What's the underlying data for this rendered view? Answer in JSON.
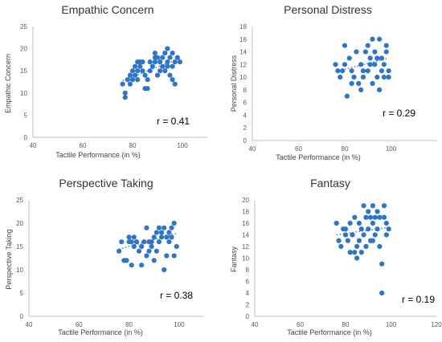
{
  "chart_data": [
    {
      "type": "scatter",
      "title": "Empathic Concern",
      "xlabel": "Tactile Performance (in %)",
      "ylabel": "Empathic Concern",
      "xlim": [
        40,
        110
      ],
      "ylim": [
        0,
        25
      ],
      "xticks": [
        40,
        60,
        80,
        100
      ],
      "yticks": [
        0,
        5,
        10,
        15,
        20,
        25
      ],
      "annotation": "r = 0.41",
      "trendline": {
        "x": [
          76,
          99
        ],
        "y": [
          12.8,
          17.8
        ]
      },
      "points": [
        [
          76,
          12
        ],
        [
          77,
          10
        ],
        [
          77,
          9
        ],
        [
          78,
          13
        ],
        [
          79,
          14
        ],
        [
          79,
          12
        ],
        [
          80,
          15
        ],
        [
          80,
          13
        ],
        [
          81,
          16
        ],
        [
          81,
          14
        ],
        [
          82,
          15
        ],
        [
          82,
          17
        ],
        [
          82,
          13
        ],
        [
          83,
          16
        ],
        [
          83,
          17
        ],
        [
          84,
          15
        ],
        [
          84,
          17
        ],
        [
          85,
          14
        ],
        [
          85,
          11
        ],
        [
          86,
          11
        ],
        [
          86,
          13
        ],
        [
          87,
          17
        ],
        [
          87,
          15
        ],
        [
          88,
          16
        ],
        [
          89,
          17
        ],
        [
          89,
          18
        ],
        [
          89,
          19
        ],
        [
          90,
          18
        ],
        [
          90,
          14
        ],
        [
          91,
          17
        ],
        [
          92,
          18
        ],
        [
          92,
          16
        ],
        [
          93,
          19
        ],
        [
          93,
          15
        ],
        [
          94,
          17
        ],
        [
          94,
          20
        ],
        [
          95,
          18
        ],
        [
          95,
          14
        ],
        [
          96,
          19
        ],
        [
          96,
          16
        ],
        [
          96,
          13
        ],
        [
          97,
          17
        ],
        [
          97,
          12
        ],
        [
          98,
          18
        ],
        [
          99,
          17
        ],
        [
          94,
          16
        ],
        [
          91,
          15
        ]
      ]
    },
    {
      "type": "scatter",
      "title": "Personal Distress",
      "xlabel": "Tactile Performance (in %)",
      "ylabel": "Personal Distress",
      "xlim": [
        40,
        120
      ],
      "ylim": [
        0,
        18
      ],
      "xticks": [
        40,
        60,
        80,
        100
      ],
      "yticks": [
        0,
        2,
        4,
        6,
        8,
        10,
        12,
        14,
        16,
        18
      ],
      "annotation": "r = 0.29",
      "trendline": {
        "x": [
          76,
          99
        ],
        "y": [
          10.9,
          13.0
        ]
      },
      "points": [
        [
          76,
          12
        ],
        [
          77,
          11
        ],
        [
          78,
          10
        ],
        [
          79,
          11
        ],
        [
          80,
          15
        ],
        [
          80,
          12
        ],
        [
          81,
          7
        ],
        [
          82,
          13
        ],
        [
          83,
          11
        ],
        [
          83,
          9
        ],
        [
          84,
          10
        ],
        [
          85,
          14
        ],
        [
          86,
          9
        ],
        [
          87,
          8
        ],
        [
          87,
          12
        ],
        [
          88,
          10
        ],
        [
          89,
          14
        ],
        [
          90,
          11
        ],
        [
          90,
          15
        ],
        [
          91,
          12
        ],
        [
          91,
          13
        ],
        [
          92,
          16
        ],
        [
          92,
          9
        ],
        [
          93,
          14
        ],
        [
          93,
          12
        ],
        [
          94,
          10
        ],
        [
          95,
          8
        ],
        [
          95,
          16
        ],
        [
          96,
          11
        ],
        [
          96,
          13
        ],
        [
          97,
          12
        ],
        [
          97,
          10
        ],
        [
          98,
          15
        ],
        [
          98,
          14
        ],
        [
          99,
          11
        ],
        [
          99,
          10
        ],
        [
          94,
          13
        ],
        [
          88,
          11
        ]
      ]
    },
    {
      "type": "scatter",
      "title": "Perspective Taking",
      "xlabel": "Tactile Performance (in %)",
      "ylabel": "Perspective Taking",
      "xlim": [
        40,
        110
      ],
      "ylim": [
        0,
        25
      ],
      "xticks": [
        40,
        60,
        80,
        100
      ],
      "yticks": [
        0,
        5,
        10,
        15,
        20,
        25
      ],
      "annotation": "r = 0.38",
      "trendline": {
        "x": [
          76,
          99
        ],
        "y": [
          14.4,
          17.8
        ]
      },
      "points": [
        [
          76,
          14
        ],
        [
          77,
          16
        ],
        [
          78,
          12
        ],
        [
          79,
          12
        ],
        [
          80,
          16
        ],
        [
          80,
          17
        ],
        [
          81,
          16
        ],
        [
          81,
          11
        ],
        [
          82,
          15
        ],
        [
          82,
          17
        ],
        [
          83,
          16
        ],
        [
          84,
          14
        ],
        [
          85,
          11
        ],
        [
          85,
          15
        ],
        [
          86,
          16
        ],
        [
          87,
          19
        ],
        [
          87,
          13
        ],
        [
          88,
          16
        ],
        [
          88,
          14
        ],
        [
          89,
          15
        ],
        [
          90,
          17
        ],
        [
          90,
          12
        ],
        [
          91,
          18
        ],
        [
          91,
          14
        ],
        [
          92,
          19
        ],
        [
          92,
          16
        ],
        [
          93,
          18
        ],
        [
          93,
          17
        ],
        [
          94,
          10
        ],
        [
          94,
          19
        ],
        [
          95,
          17
        ],
        [
          95,
          13
        ],
        [
          96,
          16
        ],
        [
          96,
          18
        ],
        [
          97,
          19
        ],
        [
          97,
          17
        ],
        [
          98,
          20
        ],
        [
          98,
          13
        ],
        [
          99,
          15
        ],
        [
          89,
          16
        ]
      ]
    },
    {
      "type": "scatter",
      "title": "Fantasy",
      "xlabel": "Tactile Performance (in %)",
      "ylabel": "Fantasy",
      "xlim": [
        40,
        120
      ],
      "ylim": [
        0,
        20
      ],
      "xticks": [
        40,
        60,
        80,
        100,
        120
      ],
      "yticks": [
        0,
        2,
        4,
        6,
        8,
        10,
        12,
        14,
        16,
        18,
        20
      ],
      "annotation": "r = 0.19",
      "trendline": {
        "x": [
          76,
          99
        ],
        "y": [
          14.0,
          15.3
        ]
      },
      "points": [
        [
          76,
          16
        ],
        [
          77,
          13
        ],
        [
          78,
          12
        ],
        [
          79,
          15
        ],
        [
          80,
          14
        ],
        [
          80,
          15
        ],
        [
          81,
          13
        ],
        [
          82,
          11
        ],
        [
          82,
          16
        ],
        [
          83,
          14
        ],
        [
          84,
          17
        ],
        [
          84,
          11
        ],
        [
          85,
          12
        ],
        [
          85,
          10
        ],
        [
          86,
          13
        ],
        [
          86,
          16
        ],
        [
          87,
          11
        ],
        [
          87,
          15
        ],
        [
          88,
          19
        ],
        [
          88,
          14
        ],
        [
          89,
          17
        ],
        [
          89,
          12
        ],
        [
          90,
          18
        ],
        [
          90,
          15
        ],
        [
          91,
          17
        ],
        [
          91,
          13
        ],
        [
          92,
          19
        ],
        [
          92,
          16
        ],
        [
          93,
          17
        ],
        [
          93,
          14
        ],
        [
          94,
          18
        ],
        [
          94,
          15
        ],
        [
          95,
          12
        ],
        [
          95,
          17
        ],
        [
          96,
          9
        ],
        [
          96,
          4
        ],
        [
          97,
          19
        ],
        [
          97,
          17
        ],
        [
          98,
          16
        ],
        [
          98,
          14
        ],
        [
          99,
          15
        ],
        [
          92,
          13
        ]
      ]
    }
  ]
}
